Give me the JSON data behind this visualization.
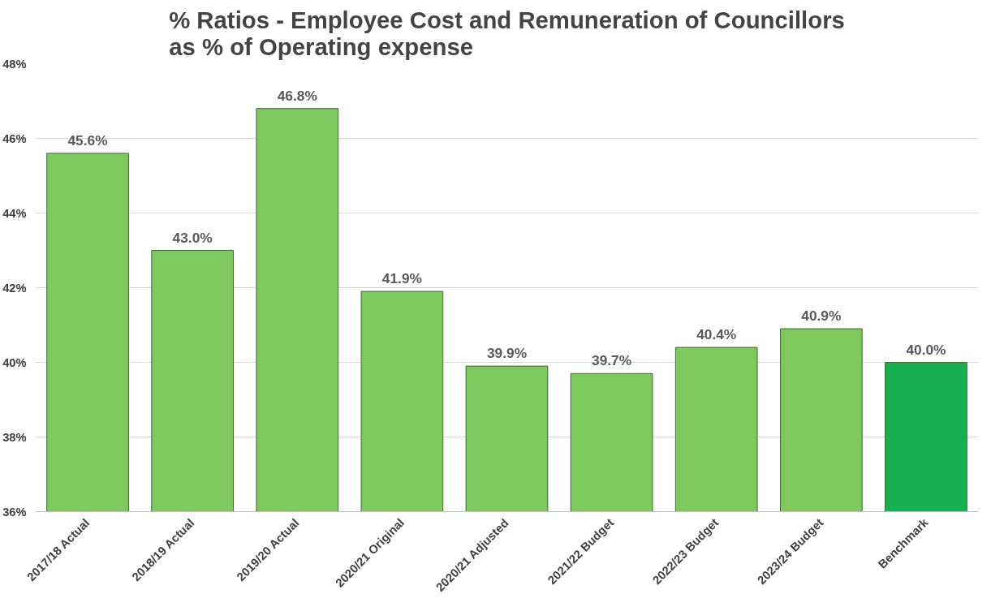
{
  "chart_data": {
    "type": "bar",
    "title": "% Ratios - Employee Cost and Remuneration of Councillors as % of Operating expense",
    "categories": [
      "2017/18 Actual",
      "2018/19 Actual",
      "2019/20 Actual",
      "2020/21 Original",
      "2020/21 Adjusted",
      "2021/22 Budget",
      "2022/23 Budget",
      "2023/24 Budget",
      "Benchmark"
    ],
    "values": [
      45.6,
      43.0,
      46.8,
      41.9,
      39.9,
      39.7,
      40.4,
      40.9,
      40.0
    ],
    "value_labels": [
      "45.6%",
      "43.0%",
      "46.8%",
      "41.9%",
      "39.9%",
      "39.7%",
      "40.4%",
      "40.9%",
      "40.0%"
    ],
    "colors": [
      "#7dc95e",
      "#7dc95e",
      "#7dc95e",
      "#7dc95e",
      "#7dc95e",
      "#7dc95e",
      "#7dc95e",
      "#7dc95e",
      "#14b14e"
    ],
    "ylim": [
      36,
      48
    ],
    "yticks": [
      {
        "value": 36,
        "label": "36%"
      },
      {
        "value": 38,
        "label": "38%"
      },
      {
        "value": 40,
        "label": "40%"
      },
      {
        "value": 42,
        "label": "42%"
      },
      {
        "value": 44,
        "label": "44%"
      },
      {
        "value": 46,
        "label": "46%"
      },
      {
        "value": 48,
        "label": "48%"
      }
    ],
    "grid": "y"
  }
}
